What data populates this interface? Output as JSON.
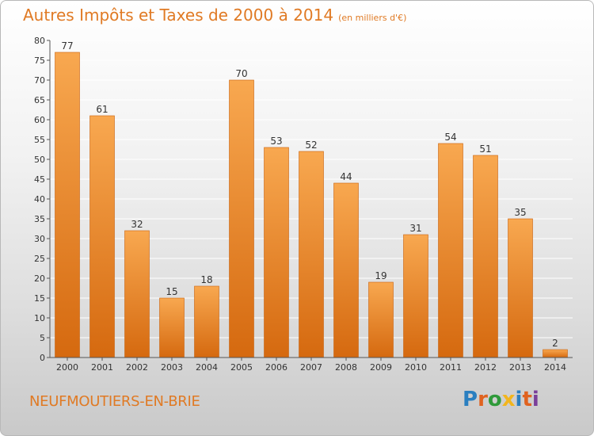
{
  "title": "Autres Impôts et Taxes de 2000 à 2014",
  "unit_note": "(en milliers d'€)",
  "commune": "NEUFMOUTIERS-EN-BRIE",
  "logo": {
    "text": "Proxiti",
    "colors": [
      "#2a7fc0",
      "#e0621f",
      "#2f9a3a",
      "#f2b51d",
      "#2a7fc0",
      "#e0621f",
      "#7a3f9a"
    ]
  },
  "colors": {
    "accent": "#e07a24",
    "bar_light": "#f7a44a",
    "bar_dark": "#d96b10"
  },
  "chart_data": {
    "type": "bar",
    "categories": [
      "2000",
      "2001",
      "2002",
      "2003",
      "2004",
      "2005",
      "2006",
      "2007",
      "2008",
      "2009",
      "2010",
      "2011",
      "2012",
      "2013",
      "2014"
    ],
    "values": [
      77,
      61,
      32,
      15,
      18,
      70,
      53,
      52,
      44,
      19,
      31,
      54,
      51,
      35,
      2
    ],
    "ylim": [
      0,
      80
    ],
    "yticks": [
      0,
      5,
      10,
      15,
      20,
      25,
      30,
      35,
      40,
      45,
      50,
      55,
      60,
      65,
      70,
      75,
      80
    ],
    "title": "Autres Impôts et Taxes de 2000 à 2014",
    "xlabel": "",
    "ylabel": "",
    "grid": true
  }
}
